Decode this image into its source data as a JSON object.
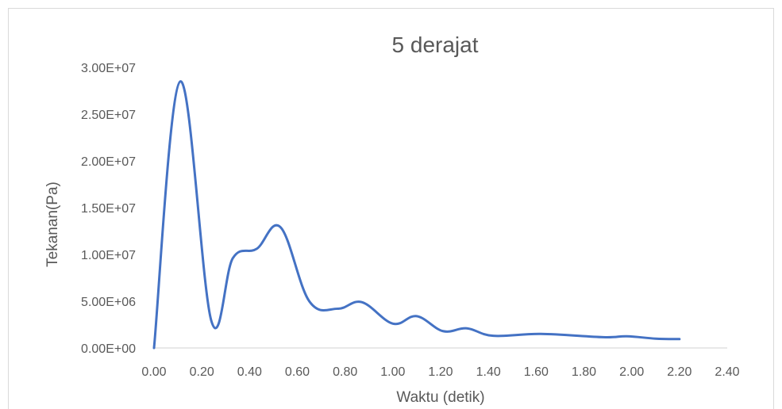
{
  "chart_data": {
    "type": "line",
    "title": "5 derajat",
    "xlabel": "Waktu (detik)",
    "ylabel": "Tekanan(Pa)",
    "xlim": [
      0,
      2.4
    ],
    "ylim": [
      0,
      30000000
    ],
    "x_ticks": [
      "0.00",
      "0.20",
      "0.40",
      "0.60",
      "0.80",
      "1.00",
      "1.20",
      "1.40",
      "1.60",
      "1.80",
      "2.00",
      "2.20",
      "2.40"
    ],
    "y_ticks": [
      "0.00E+00",
      "5.00E+06",
      "1.00E+07",
      "1.50E+07",
      "2.00E+07",
      "2.50E+07",
      "3.00E+07"
    ],
    "grid": false,
    "legend": "none",
    "series": [
      {
        "color": "#4472c4",
        "points": [
          [
            0.0,
            0
          ],
          [
            0.11,
            28500000
          ],
          [
            0.24,
            2900000
          ],
          [
            0.33,
            9600000
          ],
          [
            0.43,
            10600000
          ],
          [
            0.53,
            12900000
          ],
          [
            0.65,
            5000000
          ],
          [
            0.77,
            4200000
          ],
          [
            0.87,
            4900000
          ],
          [
            1.0,
            2600000
          ],
          [
            1.1,
            3400000
          ],
          [
            1.21,
            1800000
          ],
          [
            1.31,
            2100000
          ],
          [
            1.42,
            1300000
          ],
          [
            1.62,
            1500000
          ],
          [
            1.88,
            1150000
          ],
          [
            1.98,
            1250000
          ],
          [
            2.1,
            1000000
          ],
          [
            2.2,
            950000
          ]
        ]
      }
    ]
  }
}
